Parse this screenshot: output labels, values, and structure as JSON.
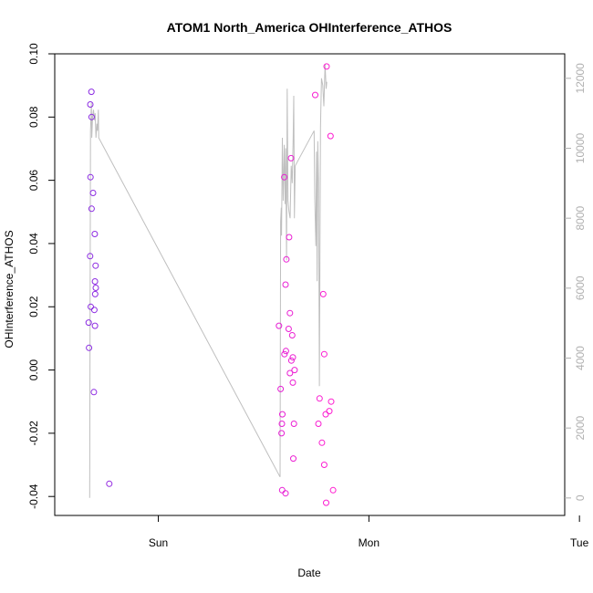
{
  "chart_data": {
    "type": "scatter",
    "title": "ATOM1 North_America OHInterference_ATHOS",
    "xlabel": "Date",
    "ylabel": "OHInterference_ATHOS",
    "x_unit": "days",
    "x_tick_labels": [
      {
        "label": "Sun",
        "x": 0
      },
      {
        "label": "Mon",
        "x": 1
      },
      {
        "label": "Tue",
        "x": 2
      }
    ],
    "xlim": [
      -0.492,
      1.93
    ],
    "ylim": [
      -0.046,
      0.1
    ],
    "y_ticks": [
      -0.04,
      -0.02,
      0.0,
      0.02,
      0.04,
      0.06,
      0.08,
      0.1
    ],
    "y_tick_labels": [
      "-0.04",
      "-0.02",
      "0.00",
      "0.02",
      "0.04",
      "0.06",
      "0.08",
      "0.10"
    ],
    "y2lim": [
      -500,
      12700
    ],
    "y2_ticks": [
      0,
      2000,
      4000,
      6000,
      8000,
      10000,
      12000
    ],
    "y2_tick_labels": [
      "0",
      "2000",
      "4000",
      "6000",
      "8000",
      "10000",
      "12000"
    ],
    "grid": false,
    "colors": {
      "points_start": "#8a2be2",
      "points_end": "#ff1cd0",
      "secondary_line": "#bfbfbf"
    },
    "series": [
      {
        "kind": "points",
        "axis": "left",
        "x": [
          -0.331,
          -0.329,
          -0.322,
          -0.324,
          -0.318,
          -0.321,
          -0.317,
          -0.323,
          -0.317,
          -0.31,
          -0.306,
          -0.304,
          -0.301,
          -0.302,
          -0.3,
          -0.301,
          -0.298,
          -0.297,
          -0.233,
          0.573,
          0.581,
          0.585,
          0.588,
          0.587,
          0.589,
          0.598,
          0.599,
          0.606,
          0.604,
          0.608,
          0.604,
          0.619,
          0.621,
          0.632,
          0.625,
          0.625,
          0.63,
          0.636,
          0.639,
          0.641,
          0.639,
          0.644,
          0.647,
          0.745,
          0.76,
          0.766,
          0.783,
          0.777,
          0.788,
          0.797,
          0.788,
          0.795,
          0.799,
          0.818,
          0.83,
          0.821,
          0.812
        ],
        "y": [
          0.015,
          0.007,
          0.061,
          0.036,
          0.088,
          0.02,
          0.08,
          0.084,
          0.051,
          0.056,
          -0.007,
          0.019,
          0.028,
          0.043,
          0.024,
          0.014,
          0.033,
          0.026,
          -0.036,
          0.014,
          -0.006,
          -0.02,
          -0.038,
          -0.017,
          -0.014,
          0.061,
          0.005,
          0.006,
          -0.039,
          0.035,
          0.027,
          0.013,
          0.042,
          0.003,
          -0.001,
          0.018,
          0.067,
          0.011,
          0.004,
          -0.028,
          -0.004,
          -0.017,
          0.0,
          0.087,
          -0.017,
          -0.009,
          0.024,
          -0.023,
          -0.03,
          -0.042,
          0.005,
          -0.014,
          0.096,
          0.074,
          -0.038,
          -0.01,
          -0.013
        ]
      },
      {
        "kind": "line",
        "axis": "right",
        "x": [
          -0.326,
          -0.322,
          -0.318,
          -0.316,
          -0.312,
          -0.308,
          -0.303,
          -0.3,
          -0.296,
          -0.292,
          -0.289,
          -0.285,
          -0.283,
          0.578,
          0.581,
          0.584,
          0.585,
          0.589,
          0.593,
          0.598,
          0.602,
          0.605,
          0.609,
          0.612,
          0.616,
          0.62,
          0.626,
          0.631,
          0.636,
          0.64,
          0.643,
          0.646,
          0.65,
          0.74,
          0.743,
          0.748,
          0.751,
          0.754,
          0.757,
          0.761,
          0.765,
          0.77,
          0.775,
          0.781,
          0.786,
          0.792,
          0.797,
          0.8
        ],
        "y": [
          0,
          10500,
          11300,
          10300,
          10900,
          11100,
          10800,
          11000,
          10300,
          10700,
          10500,
          11100,
          10300,
          600,
          7900,
          8300,
          7500,
          10300,
          8500,
          10100,
          8400,
          10000,
          6800,
          11700,
          8500,
          8200,
          8000,
          9500,
          9000,
          10200,
          11500,
          8000,
          9500,
          10500,
          8600,
          7200,
          9900,
          6200,
          10200,
          9000,
          3200,
          10600,
          12000,
          11800,
          11200,
          12400,
          11700,
          11900
        ]
      }
    ]
  }
}
